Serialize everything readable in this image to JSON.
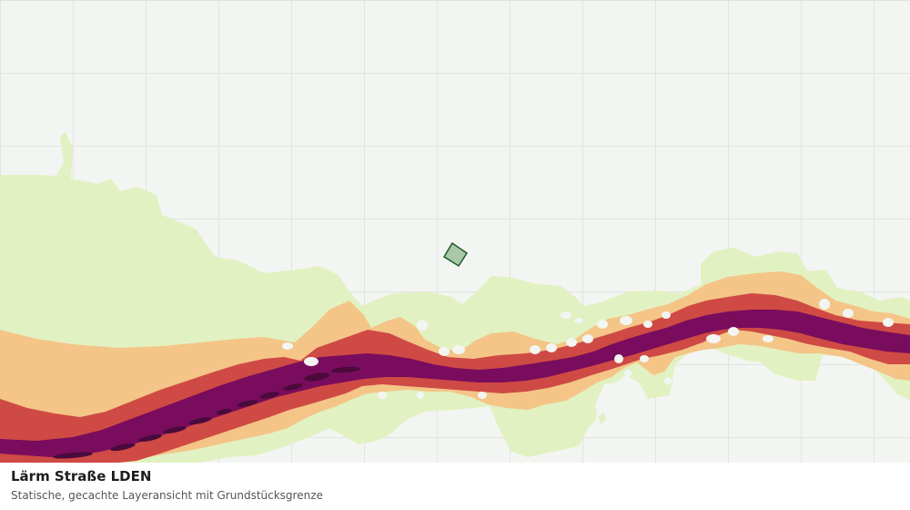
{
  "map": {
    "layer": "noise-road-lden",
    "colors": {
      "background": "#f3f5f3",
      "grid": "#e1e4e1",
      "band_low": "#e2f1c2",
      "band_mid": "#f4c587",
      "band_high": "#cf4a44",
      "band_very_high": "#7a0c5e",
      "band_extreme": "#4a0a3c",
      "parcel_fill": "#a8c8a8",
      "parcel_stroke": "#1f5a2a"
    },
    "parcel_boundary": "visible"
  },
  "caption": {
    "title": "Lärm Straße LDEN",
    "subtitle": "Statische, gecachte Layeransicht mit Grundstücksgrenze"
  }
}
